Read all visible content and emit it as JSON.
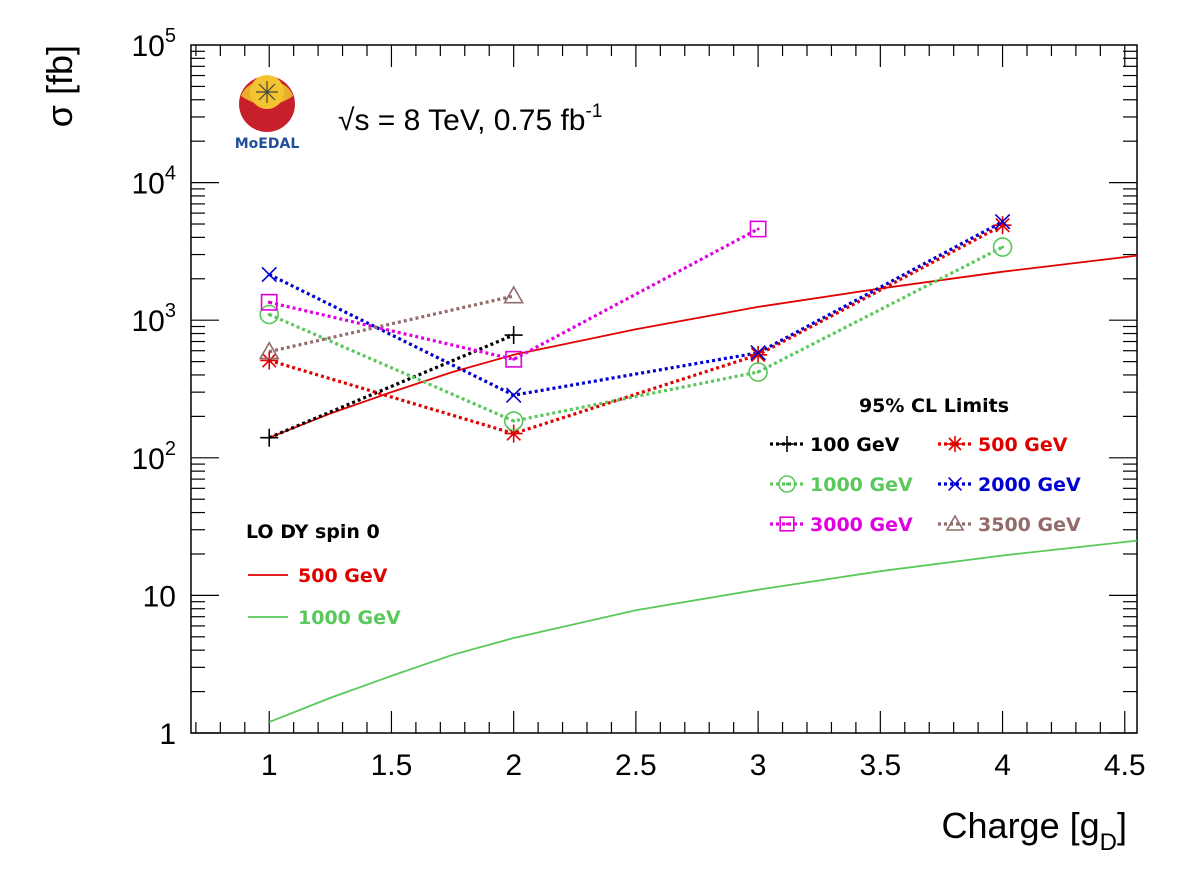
{
  "chart_data": {
    "type": "line",
    "xlabel": "Charge [g",
    "xlabel_sub": "D",
    "xlabel_end": "]",
    "ylabel": "σ [fb]",
    "xlim": [
      0.68,
      4.55
    ],
    "ylim": [
      1,
      100000
    ],
    "yscale": "log",
    "x_ticks": [
      1,
      1.5,
      2,
      2.5,
      3,
      3.5,
      4,
      4.5
    ],
    "x_tick_labels": [
      "1",
      "1.5",
      "2",
      "2.5",
      "3",
      "3.5",
      "4",
      "4.5"
    ],
    "y_ticks": [
      {
        "value": 1,
        "base": "1",
        "exp": ""
      },
      {
        "value": 10,
        "base": "10",
        "exp": ""
      },
      {
        "value": 100,
        "base": "10",
        "exp": "2"
      },
      {
        "value": 1000,
        "base": "10",
        "exp": "3"
      },
      {
        "value": 10000,
        "base": "10",
        "exp": "4"
      },
      {
        "value": 100000,
        "base": "10",
        "exp": "5"
      }
    ],
    "grid": false,
    "annotation": {
      "prefix": "√s = 8 TeV, 0.75 fb",
      "sup": "-1"
    },
    "logo": {
      "label": "MoEDAL"
    },
    "limits_legend": {
      "title": "95% CL Limits",
      "placement": "center-right"
    },
    "theory_legend": {
      "title": "LO DY spin 0",
      "placement": "bottom-left"
    },
    "limit_series": [
      {
        "name": "100 GeV",
        "color": "#000000",
        "marker": "plus",
        "x": [
          1,
          2
        ],
        "y": [
          140,
          780
        ]
      },
      {
        "name": "500 GeV",
        "color": "#e00000",
        "marker": "star",
        "x": [
          1,
          2,
          3,
          4
        ],
        "y": [
          510,
          150,
          560,
          4900
        ]
      },
      {
        "name": "1000 GeV",
        "color": "#5ac85a",
        "marker": "open-circle",
        "x": [
          1,
          2,
          3,
          4
        ],
        "y": [
          1100,
          185,
          420,
          3400
        ]
      },
      {
        "name": "2000 GeV",
        "color": "#0000d0",
        "marker": "cross",
        "x": [
          1,
          2,
          3,
          4
        ],
        "y": [
          2150,
          285,
          580,
          5200
        ]
      },
      {
        "name": "3000 GeV",
        "color": "#e000e0",
        "marker": "open-square",
        "x": [
          1,
          2,
          3
        ],
        "y": [
          1350,
          520,
          4600
        ]
      },
      {
        "name": "3500 GeV",
        "color": "#926b6b",
        "marker": "open-triangle",
        "x": [
          1,
          2
        ],
        "y": [
          590,
          1500
        ]
      }
    ],
    "theory_series": [
      {
        "name": "500 GeV",
        "color": "#e00000",
        "x": [
          1,
          1.25,
          1.5,
          1.75,
          2,
          2.5,
          3,
          3.5,
          4,
          4.55
        ],
        "y": [
          140,
          210,
          300,
          420,
          560,
          860,
          1250,
          1700,
          2250,
          2950
        ]
      },
      {
        "name": "1000 GeV",
        "color": "#5ac85a",
        "x": [
          1,
          1.25,
          1.5,
          1.75,
          2,
          2.5,
          3,
          3.5,
          4,
          4.55
        ],
        "y": [
          1.2,
          1.8,
          2.6,
          3.7,
          4.9,
          7.8,
          11,
          15,
          19.5,
          25
        ]
      }
    ]
  }
}
